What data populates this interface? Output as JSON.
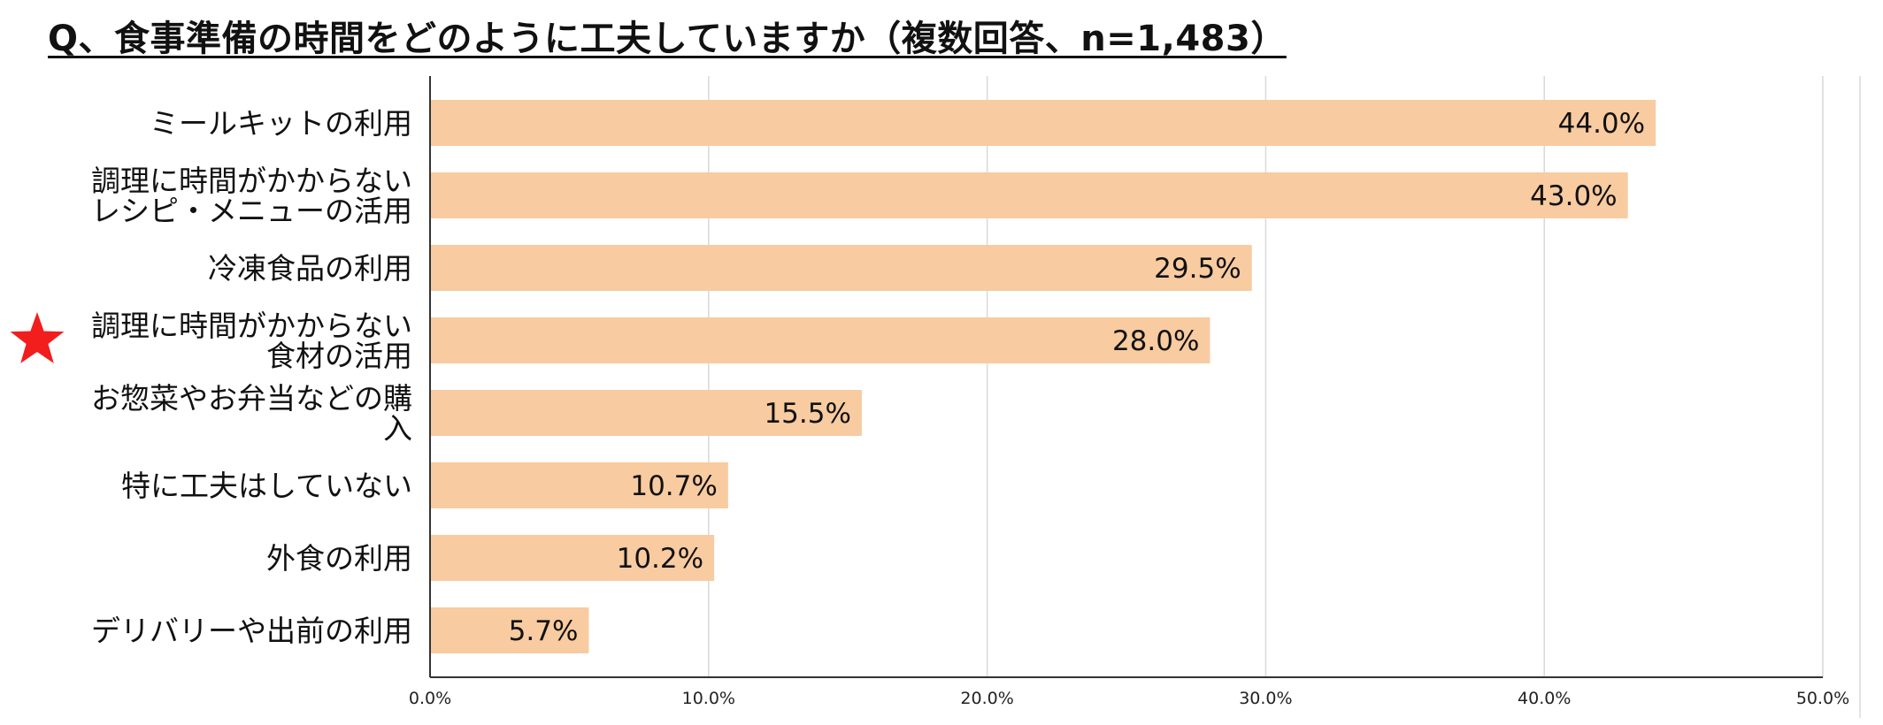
{
  "chart_data": {
    "type": "bar",
    "orientation": "horizontal",
    "title": "Q、食事準備の時間をどのように工夫していますか（複数回答、n=1,483）",
    "xlabel": "",
    "ylabel": "",
    "categories": [
      [
        "ミールキットの利用"
      ],
      [
        "調理に時間がかからない",
        "レシピ・メニューの活用"
      ],
      [
        "冷凍食品の利用"
      ],
      [
        "調理に時間がかからない",
        "食材の活用"
      ],
      [
        "お惣菜やお弁当などの購",
        "入"
      ],
      [
        "特に工夫はしていない"
      ],
      [
        "外食の利用"
      ],
      [
        "デリバリーや出前の利用"
      ]
    ],
    "values": [
      44.0,
      43.0,
      29.5,
      28.0,
      15.5,
      10.7,
      10.2,
      5.7
    ],
    "data_labels": [
      "44.0%",
      "43.0%",
      "29.5%",
      "28.0%",
      "15.5%",
      "10.7%",
      "10.2%",
      "5.7%"
    ],
    "xlim": [
      0,
      50
    ],
    "xticks": [
      0,
      10,
      20,
      30,
      40,
      50
    ],
    "xtick_labels": [
      "0.0%",
      "10.0%",
      "20.0%",
      "30.0%",
      "40.0%",
      "50.0%"
    ],
    "grid": true,
    "legend": "none",
    "bar_color": "#F8CBA0",
    "grid_color": "#D9D9D9",
    "axis_color": "#333333",
    "highlighted_category_index": 3,
    "highlight_marker": "star",
    "highlight_color": "#F21D1D"
  }
}
